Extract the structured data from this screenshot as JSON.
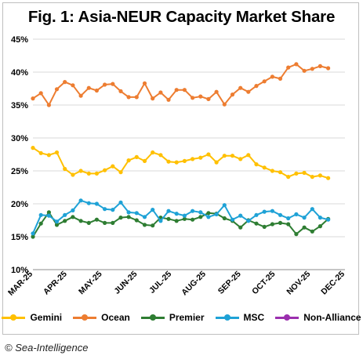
{
  "chart_data": {
    "type": "line",
    "title": "Fig. 1: Asia-NEUR Capacity Market Share",
    "xlabel": "",
    "ylabel": "",
    "ylim": [
      10,
      45
    ],
    "yticks": [
      "45%",
      "40%",
      "35%",
      "30%",
      "25%",
      "20%",
      "15%",
      "10%"
    ],
    "ytick_values": [
      45,
      40,
      35,
      30,
      25,
      20,
      15,
      10
    ],
    "x_ticks": [
      "MAR-25",
      "APR-25",
      "MAY-25",
      "JUN-25",
      "JUL-25",
      "AUG-25",
      "SEP-25",
      "OCT-25",
      "NOV-25",
      "DEC-25"
    ],
    "x_tick_weeks": [
      0,
      4.3,
      8.7,
      13.1,
      17.4,
      21.7,
      26.1,
      30.4,
      34.8,
      39.1
    ],
    "x_range": [
      0,
      39.1
    ],
    "grid": "horizontal",
    "legend_position": "bottom",
    "series": [
      {
        "name": "Gemini",
        "color": "#FFC000",
        "start_week": 0,
        "values": [
          28.5,
          27.7,
          27.4,
          27.8,
          25.3,
          24.4,
          25.0,
          24.6,
          24.6,
          25.1,
          25.7,
          24.8,
          26.6,
          27.1,
          26.5,
          27.8,
          27.4,
          26.4,
          26.3,
          26.5,
          26.8,
          27.0,
          27.5,
          26.3,
          27.3,
          27.3,
          26.8,
          27.4,
          26.0,
          25.5,
          25.0,
          24.8,
          24.1,
          24.6,
          24.7,
          24.1,
          24.3,
          23.9
        ]
      },
      {
        "name": "Ocean",
        "color": "#ED7D31",
        "start_week": 0,
        "values": [
          36.0,
          36.8,
          35.0,
          37.4,
          38.5,
          38.0,
          36.4,
          37.6,
          37.2,
          38.1,
          38.2,
          37.1,
          36.2,
          36.2,
          38.3,
          36.0,
          36.9,
          35.8,
          37.3,
          37.3,
          36.1,
          36.3,
          35.9,
          37.0,
          35.1,
          36.6,
          37.6,
          37.0,
          37.9,
          38.6,
          39.3,
          39.0,
          40.7,
          41.2,
          40.2,
          40.5,
          40.9,
          40.6
        ]
      },
      {
        "name": "Premier",
        "color": "#2E7D32",
        "start_week": 0,
        "values": [
          15.0,
          17.0,
          18.7,
          16.8,
          17.4,
          18.0,
          17.4,
          17.1,
          17.6,
          17.1,
          17.1,
          17.9,
          18.0,
          17.5,
          16.8,
          16.7,
          17.9,
          17.7,
          17.4,
          17.7,
          17.6,
          18.0,
          18.6,
          18.5,
          17.8,
          17.4,
          16.4,
          17.5,
          17.0,
          16.5,
          16.9,
          17.1,
          16.9,
          15.4,
          16.4,
          15.8,
          16.6,
          17.7
        ]
      },
      {
        "name": "MSC",
        "color": "#1FA2D6",
        "start_week": 0,
        "values": [
          15.5,
          18.3,
          18.2,
          17.3,
          18.3,
          19.0,
          20.5,
          20.1,
          20.0,
          19.2,
          19.1,
          20.2,
          18.7,
          18.6,
          18.0,
          19.1,
          17.4,
          18.9,
          18.5,
          18.2,
          18.9,
          18.7,
          18.0,
          18.4,
          19.8,
          17.6,
          18.2,
          17.4,
          18.3,
          18.8,
          18.9,
          18.3,
          17.8,
          18.4,
          17.9,
          19.2,
          17.9,
          17.6
        ]
      },
      {
        "name": "Non-Alliance",
        "color": "#9B2FAE",
        "start_week": 0,
        "values": []
      }
    ]
  },
  "credit": "© Sea-Intelligence"
}
